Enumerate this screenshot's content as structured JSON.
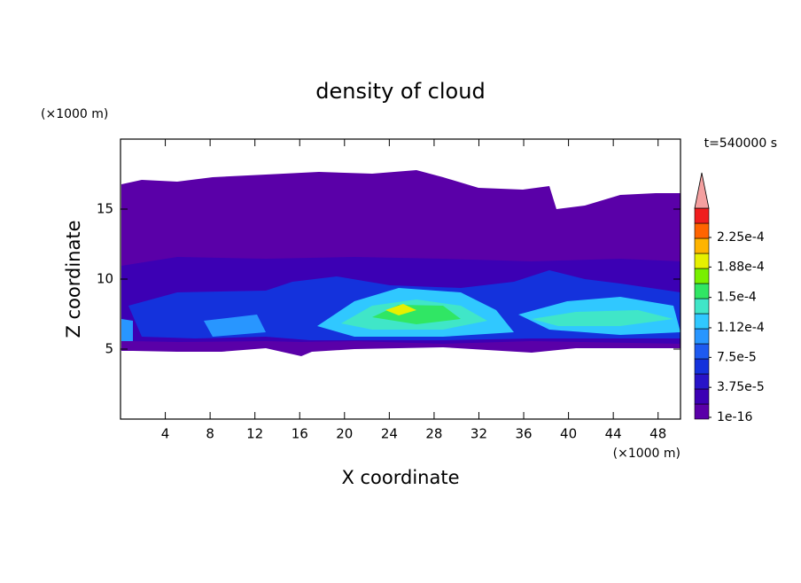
{
  "chart_data": {
    "type": "contour",
    "title": "density of cloud",
    "x_label": "X coordinate",
    "y_label": "Z coordinate",
    "x_unit": "(×1000 m)",
    "y_unit": "(×1000 m)",
    "annotation": "t=540000 s",
    "xlim": [
      0,
      50
    ],
    "ylim": [
      0,
      20
    ],
    "xticks": [
      4,
      8,
      12,
      16,
      20,
      24,
      28,
      32,
      36,
      40,
      44,
      48
    ],
    "yticks": [
      5,
      10,
      15
    ],
    "colorbar": {
      "ticks": [
        {
          "value": 1e-16,
          "label": "1e-16"
        },
        {
          "value": 3.75e-05,
          "label": "3.75e-5"
        },
        {
          "value": 7.5e-05,
          "label": "7.5e-5"
        },
        {
          "value": 0.000112,
          "label": "1.12e-4"
        },
        {
          "value": 0.00015,
          "label": "1.5e-4"
        },
        {
          "value": 0.000188,
          "label": "1.88e-4"
        },
        {
          "value": 0.000225,
          "label": "2.25e-4"
        }
      ],
      "colors": [
        "#5a00a8",
        "#3c00b4",
        "#2814c8",
        "#1432dc",
        "#1e5af0",
        "#2896ff",
        "#30c8ff",
        "#40e6c8",
        "#30e664",
        "#78f000",
        "#e6f000",
        "#ffb400",
        "#ff6400",
        "#f01e1e"
      ],
      "extend_color": "#f4a0a0"
    }
  }
}
